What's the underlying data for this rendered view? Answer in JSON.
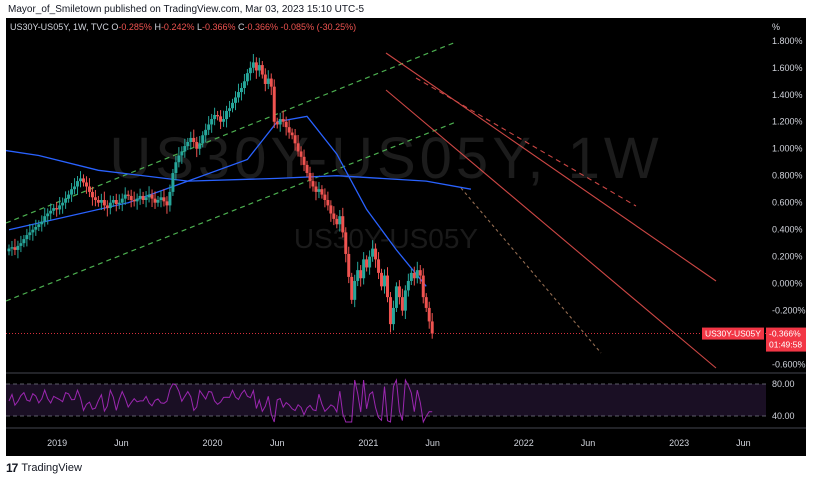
{
  "header": {
    "publish_line": "Mayor_of_Smiletown published on TradingView.com, Mar 03, 2023 15:10 UTC-5"
  },
  "legend": {
    "symbol_line": "US30Y-US05Y, 1W, TVC",
    "open_label": "O",
    "open_value": "-0.285%",
    "high_label": "H",
    "high_value": "-0.242%",
    "low_label": "L",
    "low_value": "-0.366%",
    "close_label": "C",
    "close_value": "-0.366%",
    "change": "-0.085% (-30.25%)"
  },
  "watermark": {
    "big": "US30Y-US05Y, 1W",
    "small": "US30Y-US05Y"
  },
  "price_badge": {
    "symbol": "US30Y-US05Y",
    "value": "-0.366%",
    "countdown": "01:49:58"
  },
  "footer": {
    "brand": "TradingView",
    "logo_mark": "17"
  },
  "colors": {
    "background": "#000000",
    "up": "#26a69a",
    "down": "#ef5350",
    "ma_fast": "#2962ff",
    "ma_slow": "#2962ff",
    "rsi": "#9c27b0",
    "trend_up": "#4caf50",
    "trend_down": "#ef5350",
    "badge": "#f23645"
  },
  "chart_data": {
    "type": "candlestick",
    "title": "US30Y-US05Y, 1W, TVC",
    "y_unit": "%",
    "y_ticks": [
      "1.800%",
      "1.600%",
      "1.400%",
      "1.200%",
      "1.000%",
      "0.800%",
      "0.600%",
      "0.400%",
      "0.200%",
      "0.000%",
      "-0.200%",
      "-0.400%",
      "-0.600%"
    ],
    "ylim": [
      -0.64,
      1.88
    ],
    "x_ticks": [
      "2019",
      "Jun",
      "2020",
      "Jun",
      "2021",
      "Jun",
      "2022",
      "Jun",
      "2023",
      "Jun"
    ],
    "x_range": [
      "2018-09-03",
      "2023-07-24"
    ],
    "ohlc_week_step_days": 7,
    "ohlc_start": "2018-09-10",
    "closes_approx": [
      0.26,
      0.27,
      0.25,
      0.28,
      0.3,
      0.33,
      0.36,
      0.38,
      0.4,
      0.42,
      0.44,
      0.46,
      0.5,
      0.52,
      0.54,
      0.56,
      0.55,
      0.58,
      0.6,
      0.63,
      0.66,
      0.7,
      0.72,
      0.76,
      0.78,
      0.75,
      0.72,
      0.68,
      0.64,
      0.62,
      0.6,
      0.62,
      0.58,
      0.56,
      0.6,
      0.62,
      0.59,
      0.6,
      0.63,
      0.66,
      0.65,
      0.62,
      0.61,
      0.63,
      0.65,
      0.62,
      0.64,
      0.66,
      0.63,
      0.6,
      0.62,
      0.64,
      0.61,
      0.58,
      0.68,
      0.82,
      0.9,
      0.95,
      0.98,
      1.02,
      1.05,
      1.08,
      1.05,
      1.0,
      1.04,
      1.1,
      1.14,
      1.18,
      1.22,
      1.25,
      1.24,
      1.2,
      1.22,
      1.28,
      1.3,
      1.34,
      1.38,
      1.42,
      1.45,
      1.5,
      1.56,
      1.6,
      1.64,
      1.58,
      1.62,
      1.55,
      1.48,
      1.52,
      1.46,
      1.2,
      1.18,
      1.22,
      1.2,
      1.16,
      1.12,
      1.1,
      1.04,
      0.98,
      0.94,
      0.88,
      0.82,
      0.76,
      0.72,
      0.68,
      0.7,
      0.66,
      0.62,
      0.58,
      0.52,
      0.48,
      0.44,
      0.5,
      0.38,
      0.22,
      0.05,
      -0.12,
      0.02,
      0.1,
      0.04,
      0.18,
      0.12,
      0.2,
      0.26,
      0.18,
      0.08,
      -0.02,
      0.06,
      -0.1,
      -0.3,
      -0.18,
      -0.02,
      -0.1,
      -0.2,
      -0.05,
      0.02,
      0.08,
      0.04,
      0.1,
      0.06,
      -0.1,
      -0.18,
      -0.28,
      -0.37
    ],
    "sma_fast_points": [
      [
        0,
        0.4
      ],
      [
        40,
        0.6
      ],
      [
        80,
        0.92
      ],
      [
        90,
        1.2
      ],
      [
        100,
        1.24
      ],
      [
        110,
        0.96
      ],
      [
        120,
        0.55
      ],
      [
        130,
        0.25
      ],
      [
        140,
        -0.02
      ]
    ],
    "sma_slow_points": [
      [
        -20,
        1.05
      ],
      [
        10,
        0.95
      ],
      [
        30,
        0.84
      ],
      [
        60,
        0.76
      ],
      [
        90,
        0.78
      ],
      [
        110,
        0.8
      ],
      [
        140,
        0.76
      ],
      [
        155,
        0.7
      ]
    ],
    "rsi_levels": [
      "80.00",
      "40.00"
    ]
  }
}
